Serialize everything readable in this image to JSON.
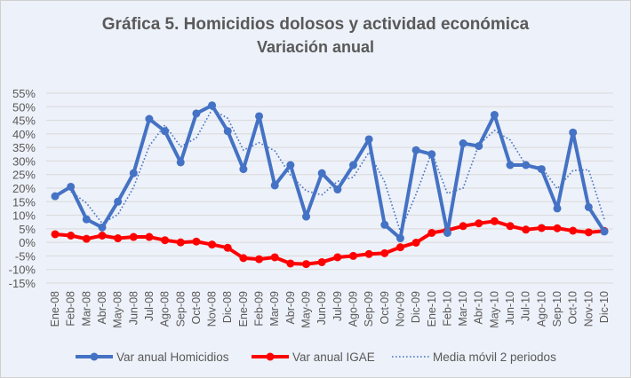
{
  "chart_data": {
    "type": "line",
    "title": "Gráfica 5. Homicidios dolosos y actividad económica",
    "subtitle": "Variación anual",
    "xlabel": "",
    "ylabel": "",
    "ylim": [
      -15,
      55
    ],
    "ytick_step": 5,
    "yticks": [
      "55%",
      "50%",
      "45%",
      "40%",
      "35%",
      "30%",
      "25%",
      "20%",
      "15%",
      "10%",
      "5%",
      "0%",
      "-5%",
      "-10%",
      "-15%"
    ],
    "grid": true,
    "legend_position": "bottom",
    "categories": [
      "Ene-08",
      "Feb-08",
      "Mar-08",
      "Abr-08",
      "May-08",
      "Jun-08",
      "Jul-08",
      "Ago-08",
      "Sep-08",
      "Oct-08",
      "Nov-08",
      "Dic-08",
      "Ene-09",
      "Feb-09",
      "Mar-09",
      "Abr-09",
      "May-09",
      "Jun-09",
      "Jul-09",
      "Ago-09",
      "Sep-09",
      "Oct-09",
      "Nov-09",
      "Dic-09",
      "Ene-10",
      "Feb-10",
      "Mar-10",
      "Abr-10",
      "May-10",
      "Jun-10",
      "Jul-10",
      "Ago-10",
      "Sep-10",
      "Oct-10",
      "Nov-10",
      "Dic-10"
    ],
    "series": [
      {
        "name": "Var anual Homicidios",
        "color": "#4472c4",
        "style": "solid-markers",
        "values": [
          17,
          20.5,
          8.5,
          5.5,
          15,
          25.5,
          45.5,
          41,
          29.5,
          47.5,
          50.5,
          41,
          27,
          46.5,
          21,
          28.5,
          9.5,
          25.5,
          19.5,
          28.5,
          38,
          6.5,
          1.5,
          34,
          32.5,
          3.5,
          36.5,
          35.5,
          47,
          28.5,
          28.5,
          27,
          12.5,
          40.5,
          13,
          4
        ]
      },
      {
        "name": "Var anual IGAE",
        "color": "#ff0000",
        "style": "solid-markers",
        "values": [
          3,
          2.5,
          1.3,
          2.5,
          1.5,
          2,
          2,
          0.8,
          0,
          0.3,
          -0.8,
          -2,
          -5.8,
          -6.2,
          -5.5,
          -7.8,
          -8,
          -7.3,
          -5.5,
          -5,
          -4.3,
          -4,
          -1.8,
          -0.1,
          3.5,
          4.5,
          6,
          7,
          7.8,
          6,
          4.7,
          5.3,
          5.2,
          4.3,
          3.7,
          4.2
        ]
      },
      {
        "name": "Media móvil 2 periodos",
        "color": "#4472c4",
        "style": "dotted",
        "values": [
          null,
          18.75,
          14.5,
          7,
          10.25,
          20.25,
          35.5,
          43.25,
          35.25,
          38.5,
          49,
          45.75,
          34,
          36.75,
          33.75,
          24.75,
          19,
          17.5,
          22.5,
          24,
          33.25,
          22.25,
          4,
          17.75,
          33.25,
          18,
          20,
          36,
          41.25,
          37.75,
          28.5,
          27.75,
          19.75,
          26.5,
          26.75,
          8.5
        ]
      }
    ]
  }
}
